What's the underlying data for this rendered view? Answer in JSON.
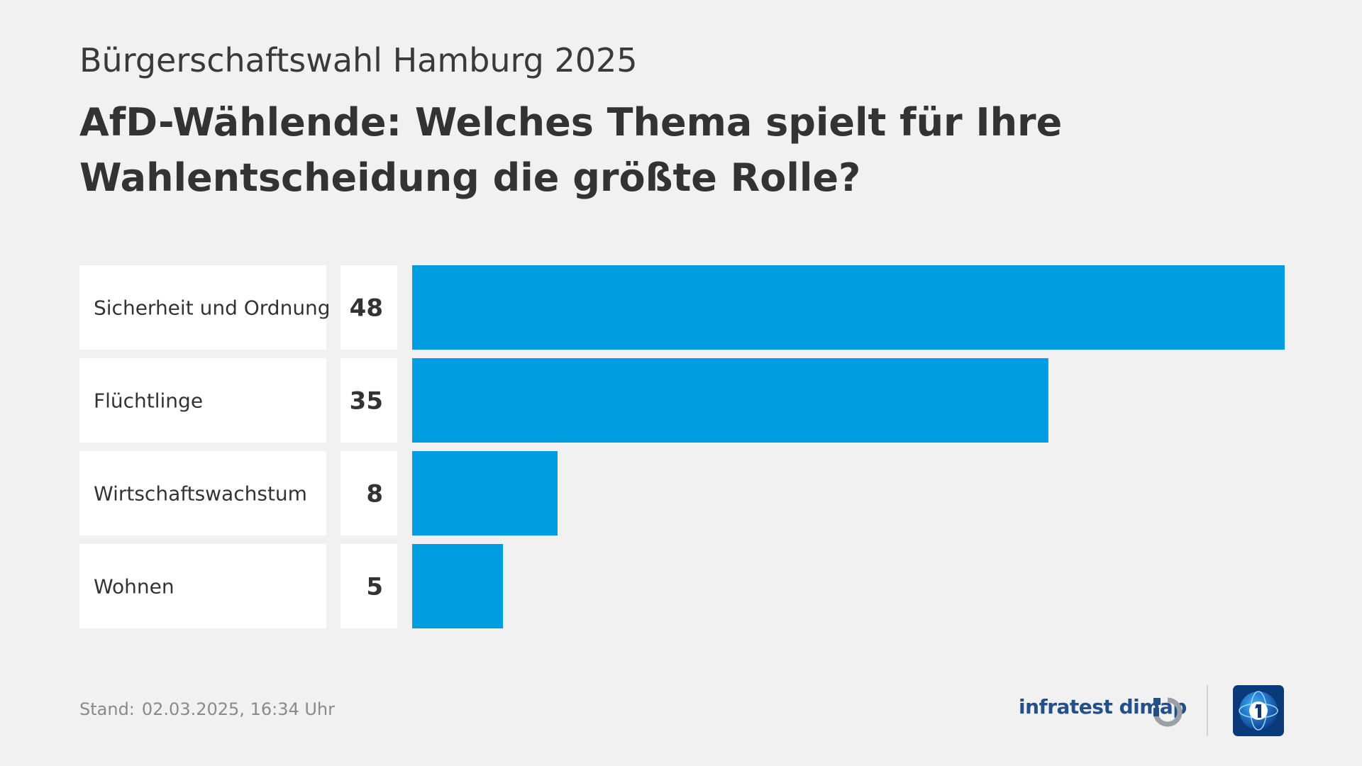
{
  "header": {
    "subtitle": "Bürgerschaftswahl Hamburg 2025",
    "title": "AfD-Wählende: Welches Thema spielt für Ihre Wahlentscheidung die größte Rolle?"
  },
  "chart_data": {
    "type": "bar",
    "orientation": "horizontal",
    "categories": [
      "Sicherheit und Ordnung",
      "Flüchtlinge",
      "Wirtschaftswachstum",
      "Wohnen"
    ],
    "values": [
      48,
      35,
      8,
      5
    ],
    "value_labels": [
      "48",
      "35",
      "8",
      "5"
    ],
    "bar_color": "#009de0",
    "label_box_color": "#ffffff",
    "grid": false,
    "legend": "none",
    "xlim": [
      0,
      48
    ]
  },
  "footer": {
    "stand_label": "Stand:",
    "stand_value": "02.03.2025, 16:34 Uhr",
    "brand": "infratest dimap",
    "brand_icon": "infratest-dimap-mark-icon",
    "broadcaster_icon": "tagesschau-globe-logo-icon"
  }
}
